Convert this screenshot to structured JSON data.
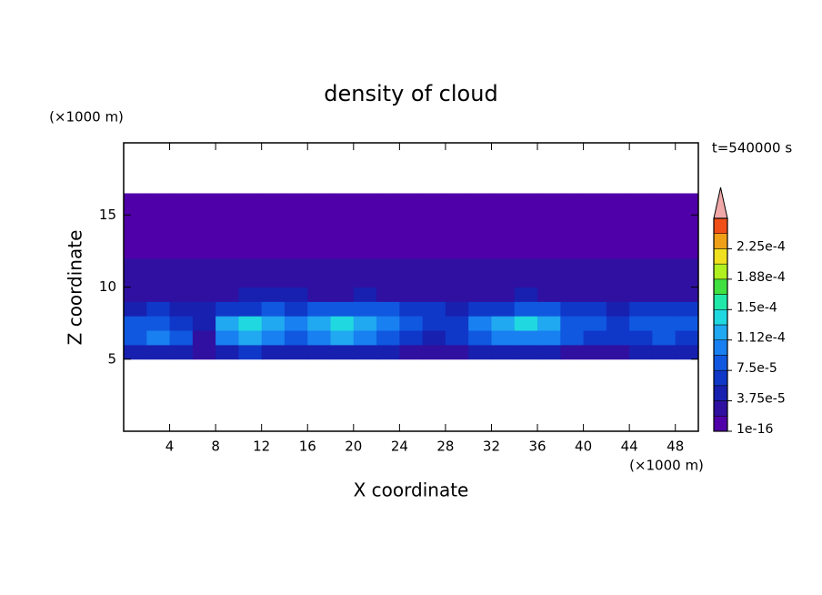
{
  "chart_data": {
    "type": "contour",
    "title": "density of cloud",
    "x_label": "X coordinate",
    "y_label": "Z coordinate",
    "x_unit_label": "(×1000 m)",
    "y_unit_label": "(×1000 m)",
    "annotation": "t=540000 s",
    "xlim": [
      0,
      50
    ],
    "ylim": [
      0,
      20
    ],
    "xticks": [
      4,
      8,
      12,
      16,
      20,
      24,
      28,
      32,
      36,
      40,
      44,
      48
    ],
    "yticks": [
      5,
      10,
      15
    ],
    "x_edges": [
      0,
      2,
      4,
      6,
      8,
      10,
      12,
      14,
      16,
      18,
      20,
      22,
      24,
      26,
      28,
      30,
      32,
      34,
      36,
      38,
      40,
      42,
      44,
      46,
      48,
      50
    ],
    "z_edges": [
      5,
      6,
      7,
      8,
      9,
      10,
      12,
      16.5
    ],
    "values": [
      [
        4e-05,
        5e-05,
        4e-05,
        2e-05,
        5e-05,
        6e-05,
        5e-05,
        4e-05,
        4e-05,
        5e-05,
        5e-05,
        4e-05,
        3e-05,
        2e-05,
        3e-05,
        4e-05,
        5e-05,
        5e-05,
        4e-05,
        3e-05,
        3e-05,
        3e-05,
        4e-05,
        4e-05,
        4e-05
      ],
      [
        9e-05,
        0.00011,
        8e-05,
        3e-05,
        0.00011,
        0.00012,
        0.0001,
        9e-05,
        0.0001,
        0.000115,
        0.00011,
        9e-05,
        7e-05,
        5e-05,
        6e-05,
        8e-05,
        0.0001,
        0.00011,
        0.0001,
        8e-05,
        6e-05,
        6e-05,
        7e-05,
        8e-05,
        7e-05
      ],
      [
        8e-05,
        9e-05,
        7e-05,
        4e-05,
        0.00013,
        0.000145,
        0.00013,
        0.0001,
        0.00012,
        0.000135,
        0.00013,
        0.00011,
        9e-05,
        6e-05,
        7e-05,
        0.0001,
        0.00012,
        0.000135,
        0.00012,
        9e-05,
        8e-05,
        7e-05,
        8e-05,
        9e-05,
        8e-05
      ],
      [
        5e-05,
        6e-05,
        5e-05,
        4e-05,
        6e-05,
        7e-05,
        8e-05,
        7e-05,
        8e-05,
        9e-05,
        9e-05,
        8e-05,
        7e-05,
        6e-05,
        5e-05,
        6e-05,
        7e-05,
        8e-05,
        8e-05,
        7e-05,
        6e-05,
        5e-05,
        6e-05,
        7e-05,
        6e-05
      ],
      [
        3e-05,
        3e-05,
        3e-05,
        2.5e-05,
        3e-05,
        4e-05,
        4e-05,
        4e-05,
        3e-05,
        3e-05,
        4e-05,
        3e-05,
        3e-05,
        2.5e-05,
        3e-05,
        3e-05,
        3e-05,
        4e-05,
        3e-05,
        3e-05,
        3e-05,
        2.5e-05,
        3e-05,
        3e-05,
        3e-05
      ],
      [
        2e-05,
        2e-05,
        2e-05,
        2e-05,
        2e-05,
        2e-05,
        2e-05,
        2e-05,
        2e-05,
        2e-05,
        2e-05,
        2e-05,
        2e-05,
        2e-05,
        2e-05,
        2e-05,
        2e-05,
        2e-05,
        2e-05,
        2e-05,
        2e-05,
        2e-05,
        2e-05,
        2e-05,
        2e-05
      ],
      [
        5e-06,
        5e-06,
        5e-06,
        5e-06,
        5e-06,
        5e-06,
        5e-06,
        5e-06,
        5e-06,
        5e-06,
        5e-06,
        5e-06,
        5e-06,
        5e-06,
        5e-06,
        5e-06,
        5e-06,
        5e-06,
        5e-06,
        5e-06,
        5e-06,
        5e-06,
        5e-06,
        5e-06,
        5e-06
      ]
    ],
    "levels": [
      1e-16,
      1.875e-05,
      3.75e-05,
      5.625e-05,
      7.5e-05,
      9.375e-05,
      0.0001125,
      0.00013125,
      0.00015,
      0.00016875,
      0.0001875,
      0.00020625,
      0.000225,
      0.00024375,
      0.0002625
    ],
    "colors": [
      "#5000a8",
      "#3010a0",
      "#1820b0",
      "#1038c8",
      "#1058e0",
      "#1880f0",
      "#20a8f0",
      "#20d8e0",
      "#20e8a8",
      "#40e040",
      "#b0f020",
      "#f0e020",
      "#f0a018",
      "#f05018"
    ],
    "extend_color": "#f0a8a8",
    "colorbar_ticks": [
      {
        "value": 1e-16,
        "label": "1e-16"
      },
      {
        "value": 3.75e-05,
        "label": "3.75e-5"
      },
      {
        "value": 7.5e-05,
        "label": "7.5e-5"
      },
      {
        "value": 0.0001125,
        "label": "1.12e-4"
      },
      {
        "value": 0.00015,
        "label": "1.5e-4"
      },
      {
        "value": 0.0001875,
        "label": "1.88e-4"
      },
      {
        "value": 0.000225,
        "label": "2.25e-4"
      }
    ]
  }
}
